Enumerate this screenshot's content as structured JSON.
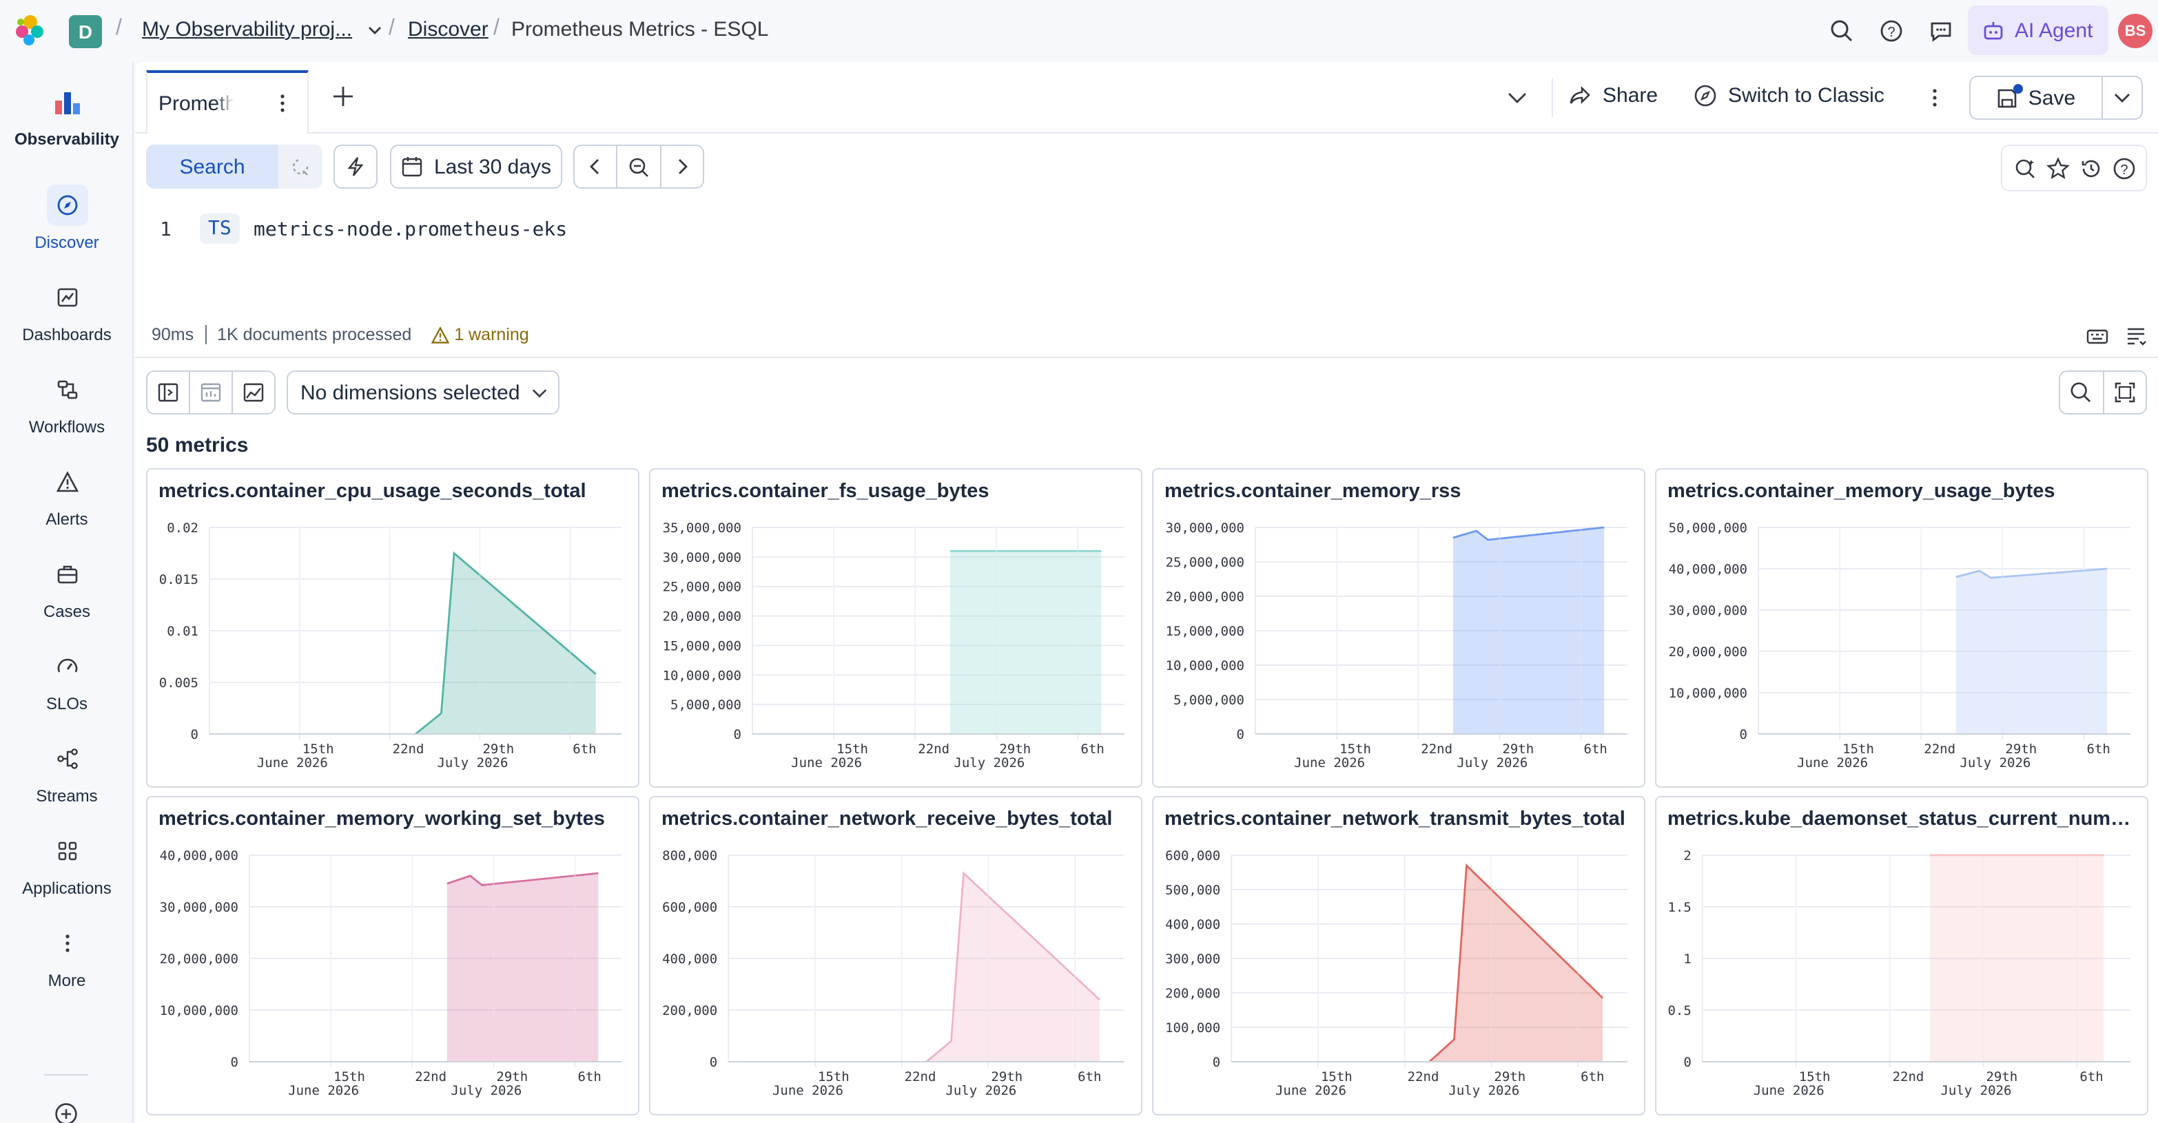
{
  "header": {
    "space_initial": "D",
    "breadcrumbs": [
      "My Observability proj...",
      "Discover",
      "Prometheus Metrics - ESQL"
    ],
    "ai_agent_label": "AI Agent",
    "user_initials": "BS"
  },
  "sidebar": {
    "items": [
      {
        "label": "Observability",
        "icon": "observability-logo-icon"
      },
      {
        "label": "Discover",
        "icon": "compass-icon"
      },
      {
        "label": "Dashboards",
        "icon": "dashboard-icon"
      },
      {
        "label": "Workflows",
        "icon": "workflow-icon"
      },
      {
        "label": "Alerts",
        "icon": "warning-icon"
      },
      {
        "label": "Cases",
        "icon": "briefcase-icon"
      },
      {
        "label": "SLOs",
        "icon": "gauge-icon"
      },
      {
        "label": "Streams",
        "icon": "streams-icon"
      },
      {
        "label": "Applications",
        "icon": "apps-grid-icon"
      },
      {
        "label": "More",
        "icon": "more-vertical-icon"
      }
    ]
  },
  "tabs": {
    "active_tab_label": "Prometheus Metrics - ESQL"
  },
  "toolbar": {
    "share_label": "Share",
    "switch_label": "Switch to Classic",
    "save_label": "Save"
  },
  "query": {
    "search_label": "Search",
    "date_range_label": "Last 30 days",
    "line_number": "1",
    "keyword": "TS",
    "source": "metrics-node.prometheus-eks"
  },
  "status": {
    "time": "90ms",
    "documents": "1K documents processed",
    "warning": "1 warning"
  },
  "metrics_toolbar": {
    "dimensions_label": "No dimensions selected",
    "count_label": "50 metrics"
  },
  "colors": {
    "accent": "#1750ba",
    "ai": "#6a4bd6",
    "avatar": "#e6606a",
    "space": "#3d9a8c"
  },
  "chart_data": [
    {
      "type": "area",
      "title": "metrics.container_cpu_usage_seconds_total",
      "color": "#54b3a6",
      "x_ticks": [
        "15th\nJune 2026",
        "22nd",
        "29th\nJuly 2026",
        "6th"
      ],
      "y_ticks": [
        "0",
        "0.005",
        "0.01",
        "0.015",
        "0.02"
      ],
      "ylim": [
        0,
        0.02
      ],
      "x": [
        "2026-06-24",
        "2026-06-26",
        "2026-06-27",
        "2026-07-08"
      ],
      "values": [
        0,
        0.002,
        0.0175,
        0.0058
      ]
    },
    {
      "type": "area",
      "title": "metrics.container_fs_usage_bytes",
      "color": "#8fd6cf",
      "x_ticks": [
        "15th\nJune 2026",
        "22nd",
        "29th\nJuly 2026",
        "6th"
      ],
      "y_ticks": [
        "0",
        "5,000,000",
        "10,000,000",
        "15,000,000",
        "20,000,000",
        "25,000,000",
        "30,000,000",
        "35,000,000"
      ],
      "ylim": [
        0,
        35000000
      ],
      "x": [
        "2026-06-25",
        "2026-07-08"
      ],
      "values": [
        31000000,
        31000000
      ]
    },
    {
      "type": "area",
      "title": "metrics.container_memory_rss",
      "color": "#6d98f2",
      "x_ticks": [
        "15th\nJune 2026",
        "22nd",
        "29th\nJuly 2026",
        "6th"
      ],
      "y_ticks": [
        "0",
        "5,000,000",
        "10,000,000",
        "15,000,000",
        "20,000,000",
        "25,000,000",
        "30,000,000"
      ],
      "ylim": [
        0,
        30000000
      ],
      "x": [
        "2026-06-25",
        "2026-06-27",
        "2026-06-28",
        "2026-07-08"
      ],
      "values": [
        28500000,
        29500000,
        28200000,
        30000000
      ]
    },
    {
      "type": "area",
      "title": "metrics.container_memory_usage_bytes",
      "color": "#a9c4f5",
      "x_ticks": [
        "15th\nJune 2026",
        "22nd",
        "29th\nJuly 2026",
        "6th"
      ],
      "y_ticks": [
        "0",
        "10,000,000",
        "20,000,000",
        "30,000,000",
        "40,000,000",
        "50,000,000"
      ],
      "ylim": [
        0,
        50000000
      ],
      "x": [
        "2026-06-25",
        "2026-06-27",
        "2026-06-28",
        "2026-07-08"
      ],
      "values": [
        38000000,
        39500000,
        37800000,
        40000000
      ]
    },
    {
      "type": "area",
      "title": "metrics.container_memory_working_set_bytes",
      "color": "#d870a0",
      "x_ticks": [
        "15th\nJune 2026",
        "22nd",
        "29th\nJuly 2026",
        "6th"
      ],
      "y_ticks": [
        "0",
        "10,000,000",
        "20,000,000",
        "30,000,000",
        "40,000,000"
      ],
      "ylim": [
        0,
        40000000
      ],
      "x": [
        "2026-06-25",
        "2026-06-27",
        "2026-06-28",
        "2026-07-08"
      ],
      "values": [
        34500000,
        36000000,
        34200000,
        36500000
      ]
    },
    {
      "type": "area",
      "title": "metrics.container_network_receive_bytes_total",
      "color": "#f0b3c8",
      "x_ticks": [
        "15th\nJune 2026",
        "22nd",
        "29th\nJuly 2026",
        "6th"
      ],
      "y_ticks": [
        "0",
        "200,000",
        "400,000",
        "600,000",
        "800,000"
      ],
      "ylim": [
        0,
        800000
      ],
      "x": [
        "2026-06-24",
        "2026-06-26",
        "2026-06-27",
        "2026-07-08"
      ],
      "values": [
        0,
        80000,
        730000,
        240000
      ]
    },
    {
      "type": "area",
      "title": "metrics.container_network_transmit_bytes_total",
      "color": "#e0675f",
      "x_ticks": [
        "15th\nJune 2026",
        "22nd",
        "29th\nJuly 2026",
        "6th"
      ],
      "y_ticks": [
        "0",
        "100,000",
        "200,000",
        "300,000",
        "400,000",
        "500,000",
        "600,000"
      ],
      "ylim": [
        0,
        600000
      ],
      "x": [
        "2026-06-24",
        "2026-06-26",
        "2026-06-27",
        "2026-07-08"
      ],
      "values": [
        0,
        65000,
        570000,
        185000
      ]
    },
    {
      "type": "area",
      "title": "metrics.kube_daemonset_status_current_numbe...",
      "color": "#f7c4c4",
      "x_ticks": [
        "15th\nJune 2026",
        "22nd",
        "29th\nJuly 2026",
        "6th"
      ],
      "y_ticks": [
        "0",
        "0.5",
        "1",
        "1.5",
        "2"
      ],
      "ylim": [
        0,
        2
      ],
      "x": [
        "2026-06-25",
        "2026-07-08"
      ],
      "values": [
        2,
        2
      ]
    }
  ]
}
